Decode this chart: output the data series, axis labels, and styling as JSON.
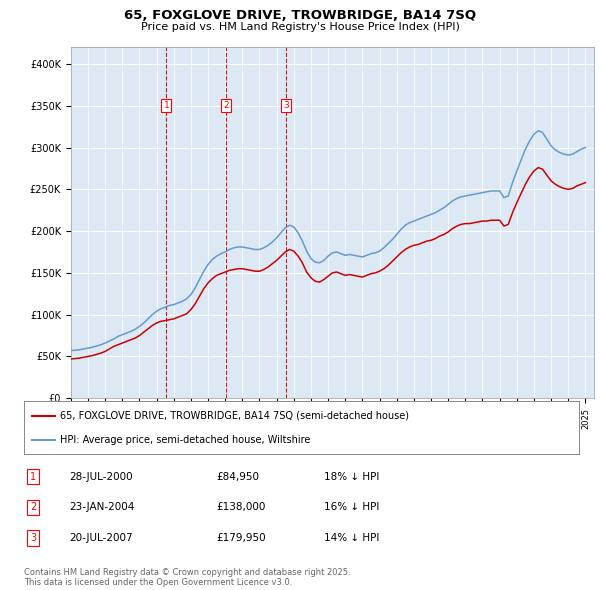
{
  "title": "65, FOXGLOVE DRIVE, TROWBRIDGE, BA14 7SQ",
  "subtitle": "Price paid vs. HM Land Registry's House Price Index (HPI)",
  "ylabel_ticks": [
    "£0",
    "£50K",
    "£100K",
    "£150K",
    "£200K",
    "£250K",
    "£300K",
    "£350K",
    "£400K"
  ],
  "ytick_values": [
    0,
    50000,
    100000,
    150000,
    200000,
    250000,
    300000,
    350000,
    400000
  ],
  "ylim": [
    0,
    420000
  ],
  "xlim_start": 1995.0,
  "xlim_end": 2025.5,
  "plot_bg_color": "#dce9f5",
  "red_line_color": "#cc0000",
  "blue_line_color": "#6699cc",
  "vline_color": "#cc0000",
  "sale_points": [
    {
      "year": 2000.57,
      "price": 84950,
      "label": "1"
    },
    {
      "year": 2004.07,
      "price": 138000,
      "label": "2"
    },
    {
      "year": 2007.55,
      "price": 179950,
      "label": "3"
    }
  ],
  "legend_red_label": "65, FOXGLOVE DRIVE, TROWBRIDGE, BA14 7SQ (semi-detached house)",
  "legend_blue_label": "HPI: Average price, semi-detached house, Wiltshire",
  "table_rows": [
    {
      "num": "1",
      "date": "28-JUL-2000",
      "price": "£84,950",
      "hpi": "18% ↓ HPI"
    },
    {
      "num": "2",
      "date": "23-JAN-2004",
      "price": "£138,000",
      "hpi": "16% ↓ HPI"
    },
    {
      "num": "3",
      "date": "20-JUL-2007",
      "price": "£179,950",
      "hpi": "14% ↓ HPI"
    }
  ],
  "footnote": "Contains HM Land Registry data © Crown copyright and database right 2025.\nThis data is licensed under the Open Government Licence v3.0.",
  "hpi_data": {
    "years": [
      1995.0,
      1995.25,
      1995.5,
      1995.75,
      1996.0,
      1996.25,
      1996.5,
      1996.75,
      1997.0,
      1997.25,
      1997.5,
      1997.75,
      1998.0,
      1998.25,
      1998.5,
      1998.75,
      1999.0,
      1999.25,
      1999.5,
      1999.75,
      2000.0,
      2000.25,
      2000.5,
      2000.75,
      2001.0,
      2001.25,
      2001.5,
      2001.75,
      2002.0,
      2002.25,
      2002.5,
      2002.75,
      2003.0,
      2003.25,
      2003.5,
      2003.75,
      2004.0,
      2004.25,
      2004.5,
      2004.75,
      2005.0,
      2005.25,
      2005.5,
      2005.75,
      2006.0,
      2006.25,
      2006.5,
      2006.75,
      2007.0,
      2007.25,
      2007.5,
      2007.75,
      2008.0,
      2008.25,
      2008.5,
      2008.75,
      2009.0,
      2009.25,
      2009.5,
      2009.75,
      2010.0,
      2010.25,
      2010.5,
      2010.75,
      2011.0,
      2011.25,
      2011.5,
      2011.75,
      2012.0,
      2012.25,
      2012.5,
      2012.75,
      2013.0,
      2013.25,
      2013.5,
      2013.75,
      2014.0,
      2014.25,
      2014.5,
      2014.75,
      2015.0,
      2015.25,
      2015.5,
      2015.75,
      2016.0,
      2016.25,
      2016.5,
      2016.75,
      2017.0,
      2017.25,
      2017.5,
      2017.75,
      2018.0,
      2018.25,
      2018.5,
      2018.75,
      2019.0,
      2019.25,
      2019.5,
      2019.75,
      2020.0,
      2020.25,
      2020.5,
      2020.75,
      2021.0,
      2021.25,
      2021.5,
      2021.75,
      2022.0,
      2022.25,
      2022.5,
      2022.75,
      2023.0,
      2023.25,
      2023.5,
      2023.75,
      2024.0,
      2024.25,
      2024.5,
      2024.75,
      2025.0
    ],
    "values": [
      57000,
      57500,
      58000,
      59000,
      60000,
      61000,
      62500,
      64000,
      66000,
      68500,
      71000,
      74000,
      76000,
      78000,
      80000,
      82500,
      86000,
      90000,
      95000,
      100000,
      104000,
      107000,
      109000,
      111000,
      112000,
      114000,
      116000,
      119000,
      124000,
      132000,
      142000,
      152000,
      160000,
      166000,
      170000,
      173000,
      175000,
      178000,
      180000,
      181000,
      181000,
      180000,
      179000,
      178000,
      178000,
      180000,
      183000,
      187000,
      192000,
      198000,
      204000,
      207000,
      205000,
      198000,
      188000,
      176000,
      167000,
      163000,
      162000,
      165000,
      170000,
      174000,
      175000,
      173000,
      171000,
      172000,
      171000,
      170000,
      169000,
      171000,
      173000,
      174000,
      176000,
      180000,
      185000,
      190000,
      196000,
      202000,
      207000,
      210000,
      212000,
      214000,
      216000,
      218000,
      220000,
      222000,
      225000,
      228000,
      232000,
      236000,
      239000,
      241000,
      242000,
      243000,
      244000,
      245000,
      246000,
      247000,
      248000,
      248000,
      248000,
      240000,
      242000,
      258000,
      272000,
      285000,
      298000,
      308000,
      316000,
      320000,
      318000,
      310000,
      302000,
      297000,
      294000,
      292000,
      291000,
      292000,
      295000,
      298000,
      300000
    ]
  },
  "red_data": {
    "years": [
      1995.0,
      1995.25,
      1995.5,
      1995.75,
      1996.0,
      1996.25,
      1996.5,
      1996.75,
      1997.0,
      1997.25,
      1997.5,
      1997.75,
      1998.0,
      1998.25,
      1998.5,
      1998.75,
      1999.0,
      1999.25,
      1999.5,
      1999.75,
      2000.0,
      2000.25,
      2000.5,
      2000.75,
      2001.0,
      2001.25,
      2001.5,
      2001.75,
      2002.0,
      2002.25,
      2002.5,
      2002.75,
      2003.0,
      2003.25,
      2003.5,
      2003.75,
      2004.0,
      2004.25,
      2004.5,
      2004.75,
      2005.0,
      2005.25,
      2005.5,
      2005.75,
      2006.0,
      2006.25,
      2006.5,
      2006.75,
      2007.0,
      2007.25,
      2007.5,
      2007.75,
      2008.0,
      2008.25,
      2008.5,
      2008.75,
      2009.0,
      2009.25,
      2009.5,
      2009.75,
      2010.0,
      2010.25,
      2010.5,
      2010.75,
      2011.0,
      2011.25,
      2011.5,
      2011.75,
      2012.0,
      2012.25,
      2012.5,
      2012.75,
      2013.0,
      2013.25,
      2013.5,
      2013.75,
      2014.0,
      2014.25,
      2014.5,
      2014.75,
      2015.0,
      2015.25,
      2015.5,
      2015.75,
      2016.0,
      2016.25,
      2016.5,
      2016.75,
      2017.0,
      2017.25,
      2017.5,
      2017.75,
      2018.0,
      2018.25,
      2018.5,
      2018.75,
      2019.0,
      2019.25,
      2019.5,
      2019.75,
      2020.0,
      2020.25,
      2020.5,
      2020.75,
      2021.0,
      2021.25,
      2021.5,
      2021.75,
      2022.0,
      2022.25,
      2022.5,
      2022.75,
      2023.0,
      2023.25,
      2023.5,
      2023.75,
      2024.0,
      2024.25,
      2024.5,
      2024.75,
      2025.0
    ],
    "values": [
      47000,
      47500,
      48000,
      49000,
      50000,
      51000,
      52500,
      54000,
      56000,
      59000,
      62000,
      64000,
      66000,
      68000,
      70000,
      72000,
      75000,
      79000,
      83000,
      87000,
      90000,
      92000,
      93000,
      94000,
      95000,
      97000,
      99000,
      101000,
      106000,
      113000,
      122000,
      131000,
      138000,
      143000,
      147000,
      149000,
      151000,
      153000,
      154000,
      155000,
      155000,
      154000,
      153000,
      152000,
      152000,
      154000,
      157000,
      161000,
      165000,
      170000,
      175000,
      178000,
      176000,
      170000,
      162000,
      151000,
      144000,
      140000,
      139000,
      142000,
      146000,
      150000,
      151000,
      149000,
      147000,
      148000,
      147000,
      146000,
      145000,
      147000,
      149000,
      150000,
      152000,
      155000,
      159000,
      164000,
      169000,
      174000,
      178000,
      181000,
      183000,
      184000,
      186000,
      188000,
      189000,
      191000,
      194000,
      196000,
      199000,
      203000,
      206000,
      208000,
      209000,
      209000,
      210000,
      211000,
      212000,
      212000,
      213000,
      213000,
      213000,
      206000,
      208000,
      222000,
      234000,
      245000,
      256000,
      265000,
      272000,
      276000,
      274000,
      267000,
      260000,
      256000,
      253000,
      251000,
      250000,
      251000,
      254000,
      256000,
      258000
    ]
  }
}
